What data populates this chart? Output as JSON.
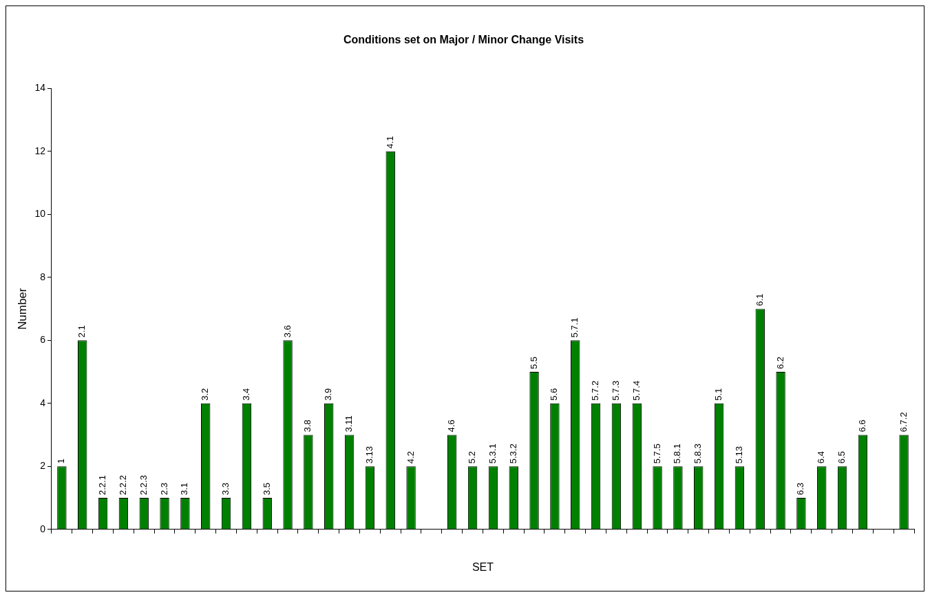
{
  "chart_data": {
    "type": "bar",
    "title": "Conditions set on Major / Minor Change Visits",
    "xlabel": "SET",
    "ylabel": "Number",
    "categories": [
      "1",
      "2.1",
      "2.2.1",
      "2.2.2",
      "2.2.3",
      "2.3",
      "3.1",
      "3.2",
      "3.3",
      "3.4",
      "3.5",
      "3.6",
      "3.8",
      "3.9",
      "3.11",
      "3.13",
      "4.1",
      "4.2",
      null,
      "4.6",
      "5.2",
      "5.3.1",
      "5.3.2",
      "5.5",
      "5.6",
      "5.7.1",
      "5.7.2",
      "5.7.3",
      "5.7.4",
      "5.7.5",
      "5.8.1",
      "5.8.3",
      "5.1",
      "5.13",
      "6.1",
      "6.2",
      "6.3",
      "6.4",
      "6.5",
      "6.6",
      null,
      "6.7.2"
    ],
    "values": [
      2,
      6,
      1,
      1,
      1,
      1,
      1,
      4,
      1,
      4,
      1,
      6,
      3,
      4,
      3,
      2,
      12,
      2,
      null,
      3,
      2,
      2,
      2,
      5,
      4,
      6,
      4,
      4,
      4,
      2,
      2,
      2,
      4,
      2,
      7,
      5,
      1,
      2,
      2,
      3,
      null,
      3
    ],
    "color": "#008000",
    "ylim": [
      0,
      14
    ],
    "yticks": [
      0,
      2,
      4,
      6,
      8,
      10,
      12,
      14
    ],
    "grid": false,
    "legend": false
  }
}
